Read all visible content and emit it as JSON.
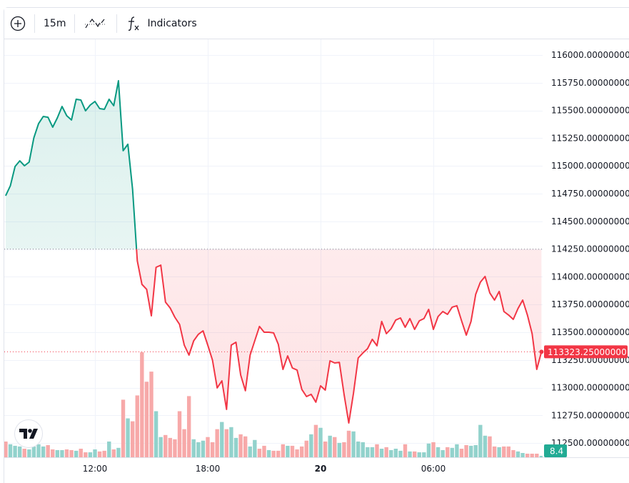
{
  "toolbar": {
    "add_icon": "plus-circle-icon",
    "interval": "15m",
    "chart_type_icon": "line-chart-type-icon",
    "indicators_icon": "fx-icon",
    "indicators_label": "Indicators"
  },
  "logo": "TV",
  "colors": {
    "up": "#089981",
    "down": "#f23645",
    "up_volume": "#92d2cc",
    "down_volume": "#f7a9a9",
    "grid": "#f0f3fa",
    "last_price_bg": "#f23645",
    "volume_label_bg": "#22ab94"
  },
  "chart_data": {
    "type": "line",
    "style": "baseline",
    "baseline": 114250,
    "last_price_label": "113323.25000000",
    "last_price": 113323.25,
    "volume_label": "8.4",
    "ylim": [
      112375,
      116150
    ],
    "y_ticks": [
      "116000.00000000",
      "115750.00000000",
      "115500.00000000",
      "115250.00000000",
      "115000.00000000",
      "114750.00000000",
      "114500.00000000",
      "114250.00000000",
      "114000.00000000",
      "113750.00000000",
      "113500.00000000",
      "113250.00000000",
      "113000.00000000",
      "112750.00000000",
      "112500.00000000"
    ],
    "x_ticks": [
      {
        "label": "12:00",
        "time": "12:00",
        "bold": false
      },
      {
        "label": "18:00",
        "time": "18:00",
        "bold": false
      },
      {
        "label": "20",
        "time": "00:00",
        "bold": true
      },
      {
        "label": "06:00",
        "time": "06:00",
        "bold": false
      }
    ],
    "grid": true,
    "price_points": [
      [
        "07:15",
        114731
      ],
      [
        "07:30",
        114821
      ],
      [
        "07:45",
        114995
      ],
      [
        "08:00",
        115046
      ],
      [
        "08:15",
        115001
      ],
      [
        "08:30",
        115034
      ],
      [
        "08:45",
        115253
      ],
      [
        "09:00",
        115381
      ],
      [
        "09:15",
        115446
      ],
      [
        "09:30",
        115439
      ],
      [
        "09:45",
        115349
      ],
      [
        "10:00",
        115433
      ],
      [
        "10:15",
        115536
      ],
      [
        "10:30",
        115452
      ],
      [
        "10:45",
        115414
      ],
      [
        "11:00",
        115601
      ],
      [
        "11:15",
        115594
      ],
      [
        "11:30",
        115497
      ],
      [
        "11:45",
        115549
      ],
      [
        "12:00",
        115581
      ],
      [
        "12:15",
        115517
      ],
      [
        "12:30",
        115510
      ],
      [
        "12:45",
        115601
      ],
      [
        "13:00",
        115543
      ],
      [
        "13:15",
        115768
      ],
      [
        "13:30",
        115137
      ],
      [
        "13:45",
        115195
      ],
      [
        "14:00",
        114789
      ],
      [
        "14:15",
        114144
      ],
      [
        "14:30",
        113932
      ],
      [
        "14:45",
        113887
      ],
      [
        "15:00",
        113648
      ],
      [
        "15:15",
        114086
      ],
      [
        "15:30",
        114105
      ],
      [
        "15:45",
        113771
      ],
      [
        "16:00",
        113719
      ],
      [
        "16:15",
        113635
      ],
      [
        "16:30",
        113571
      ],
      [
        "16:45",
        113384
      ],
      [
        "17:00",
        113294
      ],
      [
        "17:15",
        113423
      ],
      [
        "17:30",
        113481
      ],
      [
        "17:45",
        113513
      ],
      [
        "18:00",
        113384
      ],
      [
        "18:15",
        113249
      ],
      [
        "18:30",
        112998
      ],
      [
        "18:45",
        113062
      ],
      [
        "19:00",
        112804
      ],
      [
        "19:15",
        113384
      ],
      [
        "19:30",
        113410
      ],
      [
        "19:45",
        113114
      ],
      [
        "20:00",
        112972
      ],
      [
        "20:15",
        113294
      ],
      [
        "20:30",
        113423
      ],
      [
        "20:45",
        113552
      ],
      [
        "21:00",
        113500
      ],
      [
        "21:15",
        113500
      ],
      [
        "21:30",
        113494
      ],
      [
        "21:45",
        113391
      ],
      [
        "22:00",
        113165
      ],
      [
        "22:15",
        113287
      ],
      [
        "22:30",
        113178
      ],
      [
        "22:45",
        113159
      ],
      [
        "23:00",
        112985
      ],
      [
        "23:15",
        112920
      ],
      [
        "23:30",
        112940
      ],
      [
        "23:45",
        112869
      ],
      [
        "00:00",
        113017
      ],
      [
        "00:15",
        112978
      ],
      [
        "00:30",
        113242
      ],
      [
        "00:45",
        113223
      ],
      [
        "01:00",
        113229
      ],
      [
        "01:15",
        112940
      ],
      [
        "01:30",
        112682
      ],
      [
        "01:45",
        112950
      ],
      [
        "02:00",
        113268
      ],
      [
        "02:15",
        113313
      ],
      [
        "02:30",
        113352
      ],
      [
        "02:45",
        113436
      ],
      [
        "03:00",
        113378
      ],
      [
        "03:15",
        113597
      ],
      [
        "03:30",
        113487
      ],
      [
        "03:45",
        113532
      ],
      [
        "04:00",
        113610
      ],
      [
        "04:15",
        113629
      ],
      [
        "04:30",
        113545
      ],
      [
        "04:45",
        113623
      ],
      [
        "05:00",
        113526
      ],
      [
        "05:15",
        113603
      ],
      [
        "05:30",
        113623
      ],
      [
        "05:45",
        113706
      ],
      [
        "06:00",
        113526
      ],
      [
        "06:15",
        113642
      ],
      [
        "06:30",
        113687
      ],
      [
        "06:45",
        113661
      ],
      [
        "07:00",
        113726
      ],
      [
        "07:15",
        113739
      ],
      [
        "07:30",
        113603
      ],
      [
        "07:45",
        113474
      ],
      [
        "08:00",
        113597
      ],
      [
        "08:15",
        113842
      ],
      [
        "08:30",
        113951
      ],
      [
        "08:45",
        114003
      ],
      [
        "09:00",
        113855
      ],
      [
        "09:15",
        113790
      ],
      [
        "09:30",
        113868
      ],
      [
        "09:45",
        113687
      ],
      [
        "10:00",
        113655
      ],
      [
        "10:15",
        113616
      ],
      [
        "10:30",
        113713
      ],
      [
        "10:45",
        113790
      ],
      [
        "11:00",
        113655
      ],
      [
        "11:15",
        113487
      ],
      [
        "11:30",
        113165
      ],
      [
        "11:45",
        113323.25
      ]
    ],
    "volume": {
      "values": [
        92,
        76,
        67,
        63,
        50,
        46,
        63,
        76,
        63,
        71,
        46,
        42,
        42,
        46,
        42,
        38,
        50,
        29,
        29,
        46,
        34,
        38,
        92,
        46,
        55,
        336,
        227,
        210,
        361,
        613,
        441,
        500,
        269,
        118,
        130,
        113,
        105,
        269,
        164,
        357,
        105,
        88,
        97,
        118,
        88,
        164,
        206,
        164,
        176,
        113,
        134,
        122,
        63,
        101,
        50,
        67,
        42,
        38,
        38,
        76,
        67,
        67,
        46,
        63,
        97,
        134,
        189,
        172,
        92,
        126,
        118,
        84,
        88,
        155,
        151,
        92,
        88,
        59,
        59,
        76,
        50,
        59,
        42,
        50,
        38,
        76,
        34,
        34,
        29,
        29,
        80,
        88,
        59,
        42,
        59,
        55,
        76,
        50,
        71,
        67,
        71,
        189,
        126,
        122,
        63,
        59,
        63,
        63,
        42,
        34,
        25,
        21,
        21,
        21,
        8.4
      ],
      "direction": "rgggrggggrrggrrgrrggrrgrgrgrrrrrggrrrrrrgggrrrgrggrrggrrgrrrgrrrrgrgrgrgrrgggggrgrgggrgrgggrggrggrrggggrrgrrrggrrrg"
    }
  }
}
